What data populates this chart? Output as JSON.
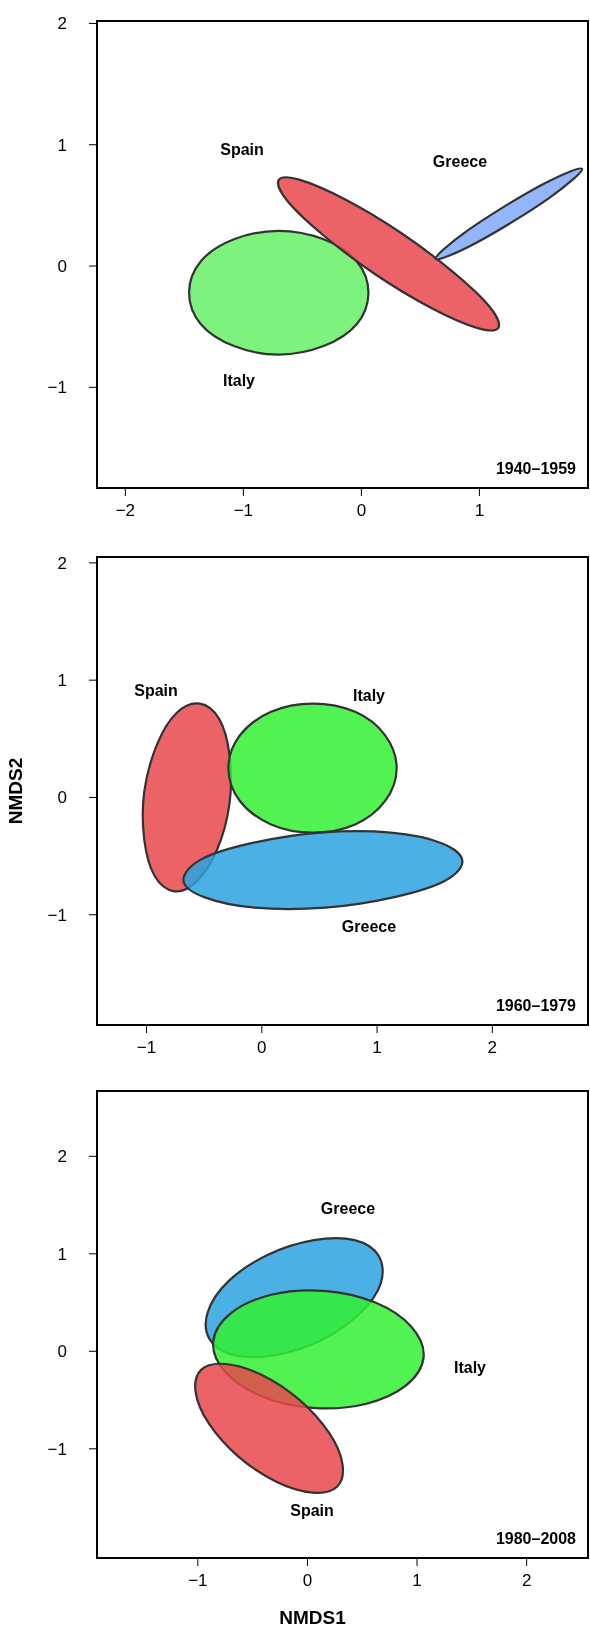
{
  "chart_data": [
    {
      "type": "area",
      "xlim": [
        -2.24,
        1.92
      ],
      "ylim": [
        -1.83,
        2.02
      ],
      "xticks": [
        -2,
        -1,
        0,
        1
      ],
      "yticks": [
        -1,
        0,
        1,
        2
      ],
      "grid": false,
      "marker": "none",
      "annotations": [
        "1940–1959"
      ],
      "series": [
        {
          "name": "Italy",
          "color": "#66f066",
          "x": [
            0.06,
            -0.04,
            -0.32,
            -0.7,
            -1.08,
            -1.36,
            -1.46,
            -1.36,
            -1.08,
            -0.7,
            -0.32,
            -0.04
          ],
          "values": [
            -0.22,
            0.04,
            0.22,
            0.29,
            0.22,
            0.04,
            -0.22,
            -0.48,
            -0.66,
            -0.73,
            -0.66,
            -0.48
          ]
        },
        {
          "name": "Spain",
          "color": "#e8474c",
          "x": [
            1.16,
            1.09,
            0.79,
            0.34,
            -0.14,
            -0.52,
            -0.7,
            -0.63,
            -0.33,
            0.12,
            0.6,
            0.98
          ],
          "values": [
            -0.51,
            -0.34,
            -0.06,
            0.27,
            0.55,
            0.71,
            0.71,
            0.54,
            0.26,
            -0.07,
            -0.35,
            -0.51
          ]
        },
        {
          "name": "Greece",
          "color": "#80a8f8",
          "x": [
            1.87,
            1.77,
            1.53,
            1.21,
            0.91,
            0.7,
            0.63,
            0.73,
            0.97,
            1.29,
            1.59,
            1.8
          ],
          "values": [
            0.8,
            0.78,
            0.67,
            0.49,
            0.3,
            0.14,
            0.06,
            0.08,
            0.19,
            0.37,
            0.56,
            0.72
          ]
        }
      ]
    },
    {
      "type": "area",
      "xlim": [
        -1.43,
        2.83
      ],
      "ylim": [
        -1.94,
        2.05
      ],
      "xticks": [
        -1,
        0,
        1,
        2
      ],
      "yticks": [
        -1,
        0,
        1,
        2
      ],
      "ylabel": "NMDS2",
      "grid": false,
      "marker": "none",
      "annotations": [
        "1960–1979"
      ],
      "series": [
        {
          "name": "Spain",
          "color": "#e8474c",
          "x": [
            -0.54,
            -0.74,
            -0.91,
            -1.02,
            -1.02,
            -0.93,
            -0.76,
            -0.57,
            -0.39,
            -0.28,
            -0.28,
            -0.37
          ],
          "values": [
            0.8,
            0.72,
            0.45,
            0.05,
            -0.36,
            -0.67,
            -0.8,
            -0.72,
            -0.45,
            -0.05,
            0.36,
            0.67
          ]
        },
        {
          "name": "Italy",
          "color": "#33f033",
          "x": [
            1.17,
            1.07,
            0.81,
            0.44,
            0.08,
            -0.19,
            -0.29,
            -0.19,
            0.08,
            0.44,
            0.81,
            1.07
          ],
          "values": [
            0.25,
            0.53,
            0.73,
            0.8,
            0.73,
            0.53,
            0.25,
            -0.03,
            -0.23,
            -0.3,
            -0.23,
            -0.03
          ]
        },
        {
          "name": "Greece",
          "color": "#2ba3e0",
          "x": [
            1.74,
            1.56,
            1.12,
            0.51,
            -0.09,
            -0.53,
            -0.68,
            -0.5,
            -0.06,
            0.55,
            1.15,
            1.59
          ],
          "values": [
            -0.54,
            -0.39,
            -0.3,
            -0.3,
            -0.39,
            -0.53,
            -0.71,
            -0.85,
            -0.94,
            -0.94,
            -0.85,
            -0.71
          ]
        }
      ]
    },
    {
      "type": "area",
      "xlim": [
        -1.92,
        2.56
      ],
      "ylim": [
        -2.12,
        2.67
      ],
      "xticks": [
        -1,
        0,
        1,
        2
      ],
      "yticks": [
        -1,
        0,
        1,
        2
      ],
      "xlabel": "NMDS1",
      "grid": false,
      "marker": "none",
      "annotations": [
        "1980–2008"
      ],
      "series": [
        {
          "name": "Greece",
          "color": "#2ba3e0",
          "x": [
            0.65,
            0.43,
            0.06,
            -0.36,
            -0.72,
            -0.91,
            -0.89,
            -0.67,
            -0.3,
            0.12,
            0.48,
            0.67
          ],
          "values": [
            0.98,
            1.14,
            1.14,
            0.99,
            0.72,
            0.4,
            0.12,
            -0.04,
            -0.04,
            0.11,
            0.39,
            0.7
          ]
        },
        {
          "name": "Italy",
          "color": "#33f033",
          "x": [
            1.06,
            0.95,
            0.62,
            0.15,
            -0.33,
            -0.7,
            -0.86,
            -0.75,
            -0.42,
            0.05,
            0.53,
            0.9
          ],
          "values": [
            -0.06,
            0.25,
            0.5,
            0.62,
            0.58,
            0.39,
            0.1,
            -0.21,
            -0.46,
            -0.58,
            -0.54,
            -0.35
          ]
        },
        {
          "name": "Spain",
          "color": "#e8474c",
          "x": [
            0.27,
            0.32,
            0.2,
            -0.07,
            -0.42,
            -0.75,
            -0.97,
            -1.02,
            -0.9,
            -0.63,
            -0.28,
            0.05
          ],
          "values": [
            -1.39,
            -1.16,
            -0.84,
            -0.5,
            -0.24,
            -0.13,
            -0.19,
            -0.42,
            -0.74,
            -1.08,
            -1.34,
            -1.45
          ]
        }
      ]
    }
  ]
}
